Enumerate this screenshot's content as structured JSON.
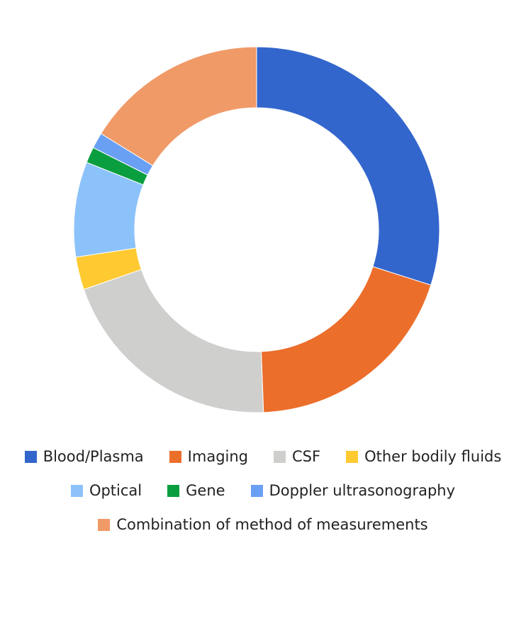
{
  "chart_data": {
    "type": "pie",
    "donut": true,
    "legend_position": "bottom",
    "slices": [
      {
        "label": "Blood/Plasma",
        "value": 29.9,
        "color": "#3366CC"
      },
      {
        "label": "Imaging",
        "value": 19.5,
        "color": "#EB6E2B"
      },
      {
        "label": "CSF",
        "value": 20.3,
        "color": "#CFCFCD"
      },
      {
        "label": "Other bodily fluids",
        "value": 2.9,
        "color": "#FFCA31"
      },
      {
        "label": "Optical",
        "value": 8.4,
        "color": "#8CC2FA"
      },
      {
        "label": "Gene",
        "value": 1.4,
        "color": "#0A9E3F"
      },
      {
        "label": "Doppler ultrasonography",
        "value": 1.4,
        "color": "#6AA0F4"
      },
      {
        "label": "Combination of method of measurements",
        "value": 16.2,
        "color": "#F09A68"
      }
    ]
  }
}
